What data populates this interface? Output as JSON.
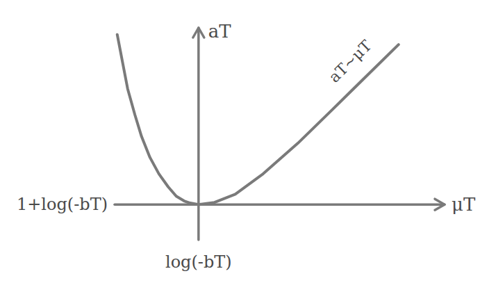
{
  "chart_data": {
    "type": "line",
    "x_label": "μT",
    "y_label": "aT",
    "annotation": "aT~μT",
    "color": "#7a7a7a",
    "x": [
      -2.81,
      -2.62,
      -2.45,
      -2.2,
      -1.97,
      -1.68,
      -1.37,
      -1.05,
      -0.77,
      -0.5,
      -0.29,
      0,
      0.55,
      1.27,
      2.23,
      3.43,
      4.63,
      5.83,
      6.91
    ],
    "values": [
      5.77,
      4.8,
      3.93,
      3.05,
      2.31,
      1.6,
      1.04,
      0.6,
      0.28,
      0.12,
      0.05,
      0,
      0.07,
      0.35,
      1.04,
      2.08,
      3.23,
      4.39,
      5.43
    ],
    "xlim": [
      -2.9,
      8.5
    ],
    "ylim": [
      -1.2,
      6
    ],
    "xticks": [
      {
        "value": 0,
        "label": "log(-bT)"
      }
    ],
    "yticks": [
      {
        "value": 0,
        "label": "1+log(-bT)"
      }
    ],
    "grid": false
  }
}
